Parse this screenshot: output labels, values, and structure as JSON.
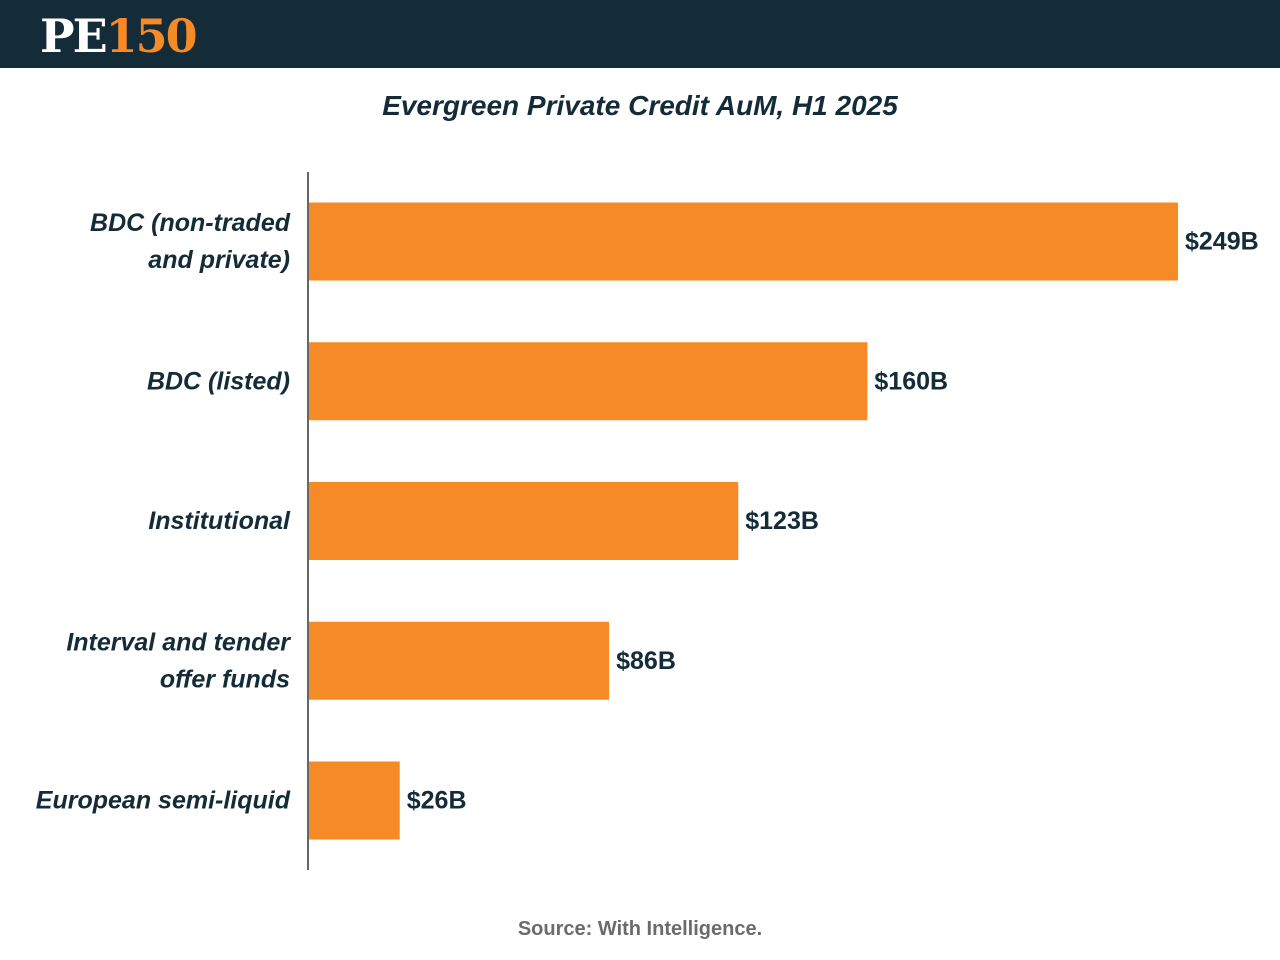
{
  "header": {
    "logo_pe": "PE",
    "logo_num": "150",
    "background_color": "#142b38",
    "accent_color": "#f58a27"
  },
  "chart_data": {
    "type": "bar",
    "orientation": "horizontal",
    "title": "Evergreen Private Credit AuM, H1 2025",
    "categories": [
      [
        "BDC (non-traded",
        "and private)"
      ],
      [
        "BDC (listed)"
      ],
      [
        "Institutional"
      ],
      [
        "Interval and tender",
        "offer funds"
      ],
      [
        "European semi-liquid"
      ]
    ],
    "values": [
      249,
      160,
      123,
      86,
      26
    ],
    "value_labels": [
      "$249B",
      "$160B",
      "$123B",
      "$86B",
      "$26B"
    ],
    "unit": "$B",
    "xlim": [
      0,
      249
    ],
    "grid": false,
    "bar_color": "#f58a27",
    "label_color": "#142b38"
  },
  "footer": {
    "source": "Source: With Intelligence."
  }
}
